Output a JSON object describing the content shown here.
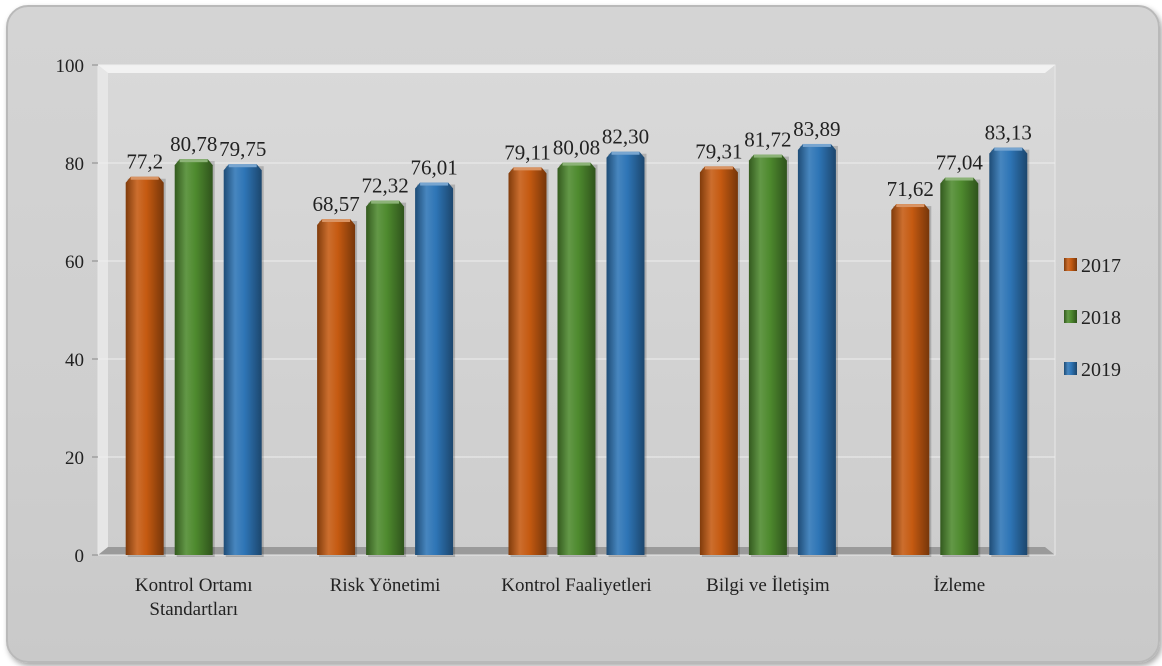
{
  "chart_data": {
    "type": "bar",
    "categories": [
      [
        "Kontrol Ortamı",
        "Standartları"
      ],
      [
        "Risk Yönetimi"
      ],
      [
        "Kontrol Faaliyetleri"
      ],
      [
        "Bilgi ve İletişim"
      ],
      [
        "İzleme"
      ]
    ],
    "series": [
      {
        "name": "2017",
        "color": "#c55a11",
        "values": [
          77.2,
          68.57,
          79.11,
          79.31,
          71.62
        ],
        "labels": [
          "77,2",
          "68,57",
          "79,11",
          "79,31",
          "71,62"
        ]
      },
      {
        "name": "2018",
        "color": "#4e8a2e",
        "values": [
          80.78,
          72.32,
          80.08,
          81.72,
          77.04
        ],
        "labels": [
          "80,78",
          "72,32",
          "80,08",
          "81,72",
          "77,04"
        ]
      },
      {
        "name": "2019",
        "color": "#2e75b6",
        "values": [
          79.75,
          76.01,
          82.3,
          83.89,
          83.13
        ],
        "labels": [
          "79,75",
          "76,01",
          "82,30",
          "83,89",
          "83,13"
        ]
      }
    ],
    "yticks": [
      0,
      20,
      40,
      60,
      80,
      100
    ],
    "ylim": [
      0,
      100
    ],
    "grid": true,
    "legend_position": "right"
  }
}
